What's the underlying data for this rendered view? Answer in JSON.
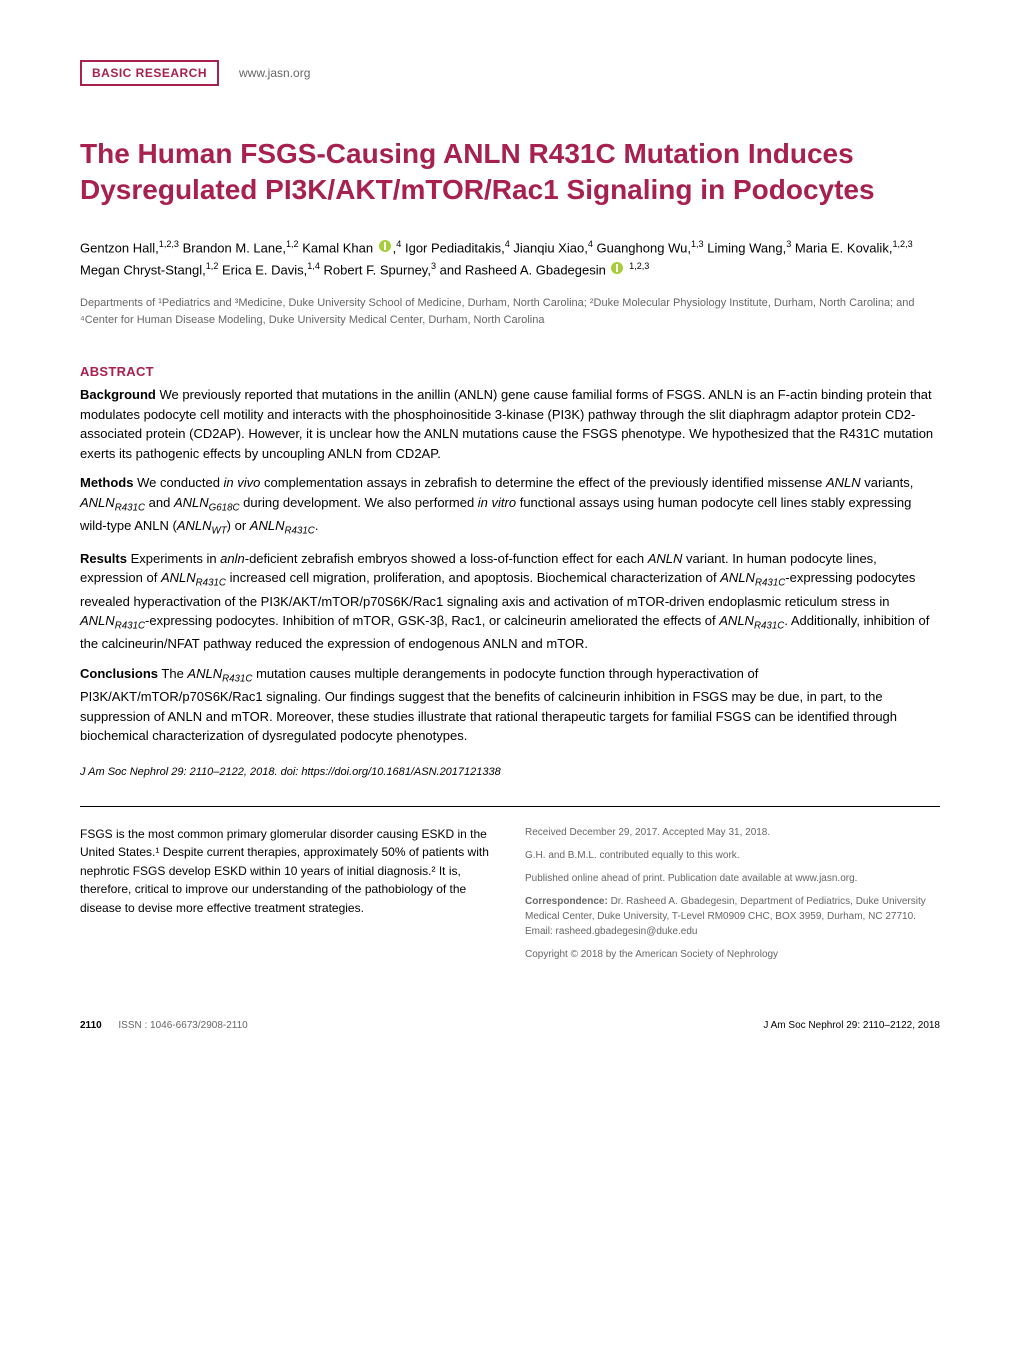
{
  "header": {
    "category": "BASIC RESEARCH",
    "url": "www.jasn.org"
  },
  "title": "The Human FSGS-Causing ANLN R431C Mutation Induces Dysregulated PI3K/AKT/mTOR/Rac1 Signaling in Podocytes",
  "authors_html": "Gentzon Hall,<sup>1,2,3</sup> Brandon M. Lane,<sup>1,2</sup> Kamal Khan <span class='orcid-icon' data-name='orcid-icon' data-interactable='false'></span>,<sup>4</sup> Igor Pediaditakis,<sup>4</sup> Jianqiu Xiao,<sup>4</sup> Guanghong Wu,<sup>1,3</sup> Liming Wang,<sup>3</sup> Maria E. Kovalik,<sup>1,2,3</sup> Megan Chryst-Stangl,<sup>1,2</sup> Erica E. Davis,<sup>1,4</sup> Robert F. Spurney,<sup>3</sup> and Rasheed A. Gbadegesin <span class='orcid-icon' data-name='orcid-icon' data-interactable='false'></span> <sup>1,2,3</sup>",
  "affiliations": "Departments of ¹Pediatrics and ³Medicine, Duke University School of Medicine, Durham, North Carolina; ²Duke Molecular Physiology Institute, Durham, North Carolina; and ⁴Center for Human Disease Modeling, Duke University Medical Center, Durham, North Carolina",
  "abstract": {
    "heading": "ABSTRACT",
    "background": {
      "label": "Background",
      "text": " We previously reported that mutations in the anillin (ANLN) gene cause familial forms of FSGS. ANLN is an F-actin binding protein that modulates podocyte cell motility and interacts with the phosphoinositide 3-kinase (PI3K) pathway through the slit diaphragm adaptor protein CD2-associated protein (CD2AP). However, it is unclear how the ANLN mutations cause the FSGS phenotype. We hypothesized that the R431C mutation exerts its pathogenic effects by uncoupling ANLN from CD2AP."
    },
    "methods": {
      "label": "Methods",
      "text_html": " We conducted <span class='italic'>in vivo</span> complementation assays in zebrafish to determine the effect of the previously identified missense <span class='italic'>ANLN</span> variants, <span class='italic'>ANLN<sub>R431C</sub></span> and <span class='italic'>ANLN<sub>G618C</sub></span> during development. We also performed <span class='italic'>in vitro</span> functional assays using human podocyte cell lines stably expressing wild-type ANLN (<span class='italic'>ANLN<sub>WT</sub></span>) or <span class='italic'>ANLN<sub>R431C</sub></span>."
    },
    "results": {
      "label": "Results",
      "text_html": " Experiments in <span class='italic'>anln</span>-deficient zebrafish embryos showed a loss-of-function effect for each <span class='italic'>ANLN</span> variant. In human podocyte lines, expression of <span class='italic'>ANLN<sub>R431C</sub></span> increased cell migration, proliferation, and apoptosis. Biochemical characterization of <span class='italic'>ANLN<sub>R431C</sub></span>-expressing podocytes revealed hyperactivation of the PI3K/AKT/mTOR/p70S6K/Rac1 signaling axis and activation of mTOR-driven endoplasmic reticulum stress in <span class='italic'>ANLN<sub>R431C</sub></span>-expressing podocytes. Inhibition of mTOR, GSK-3β, Rac1, or calcineurin ameliorated the effects of <span class='italic'>ANLN<sub>R431C</sub></span>. Additionally, inhibition of the calcineurin/NFAT pathway reduced the expression of endogenous ANLN and mTOR."
    },
    "conclusions": {
      "label": "Conclusions",
      "text_html": " The <span class='italic'>ANLN<sub>R431C</sub></span> mutation causes multiple derangements in podocyte function through hyperactivation of PI3K/AKT/mTOR/p70S6K/Rac1 signaling. Our findings suggest that the benefits of calcineurin inhibition in FSGS may be due, in part, to the suppression of ANLN and mTOR. Moreover, these studies illustrate that rational therapeutic targets for familial FSGS can be identified through biochemical characterization of dysregulated podocyte phenotypes."
    }
  },
  "citation": "J Am Soc Nephrol 29: 2110–2122, 2018. doi: https://doi.org/10.1681/ASN.2017121338",
  "body_text": "FSGS is the most common primary glomerular disorder causing ESKD in the United States.¹ Despite current therapies, approximately 50% of patients with nephrotic FSGS develop ESKD within 10 years of initial diagnosis.² It is, therefore, critical to improve our understanding of the pathobiology of the disease to devise more effective treatment strategies.",
  "meta": {
    "received": "Received December 29, 2017. Accepted May 31, 2018.",
    "contrib": "G.H. and B.M.L. contributed equally to this work.",
    "pub_online": "Published online ahead of print. Publication date available at www.jasn.org.",
    "correspondence_html": "<span class='bold'>Correspondence:</span> Dr. Rasheed A. Gbadegesin, Department of Pediatrics, Duke University Medical Center, Duke University, T-Level RM0909 CHC, BOX 3959, Durham, NC 27710. Email: rasheed.gbadegesin@duke.edu",
    "copyright": "Copyright © 2018 by the American Society of Nephrology"
  },
  "footer": {
    "page": "2110",
    "issn": "ISSN : 1046-6673/2908-2110",
    "journal": "J Am Soc Nephrol 29: 2110–2122, 2018"
  },
  "colors": {
    "accent": "#a8204e",
    "text": "#000000",
    "muted": "#666666",
    "background": "#ffffff",
    "orcid": "#a6ce39"
  },
  "typography": {
    "title_fontsize": 28,
    "body_fontsize": 13,
    "small_fontsize": 11,
    "footer_fontsize": 10
  }
}
